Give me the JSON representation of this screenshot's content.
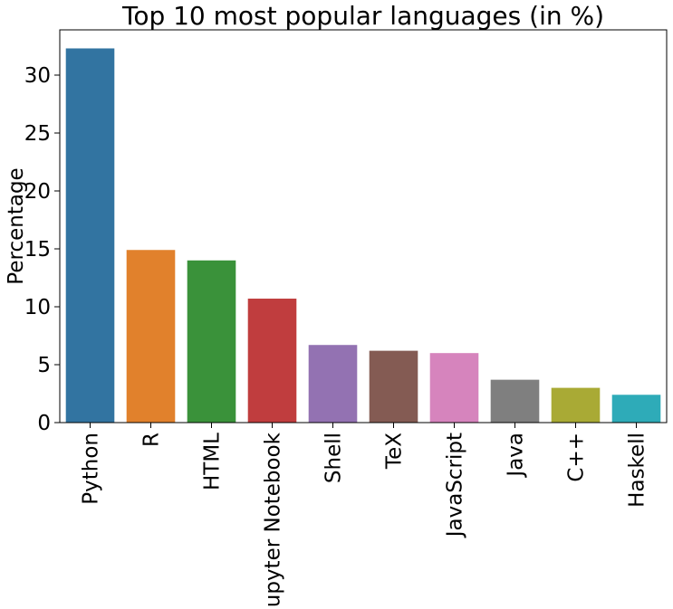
{
  "chart_data": {
    "type": "bar",
    "title": "Top 10 most popular languages (in %)",
    "xlabel": "",
    "ylabel": "Percentage",
    "categories": [
      "Python",
      "R",
      "HTML",
      "Jupyter Notebook",
      "Shell",
      "TeX",
      "JavaScript",
      "Java",
      "C++",
      "Haskell"
    ],
    "values": [
      32.3,
      14.9,
      14.0,
      10.7,
      6.7,
      6.2,
      6.0,
      3.7,
      3.0,
      2.4
    ],
    "colors": [
      "#3274a1",
      "#e1812c",
      "#3a923a",
      "#c03d3e",
      "#9372b2",
      "#845b53",
      "#d684bd",
      "#7f7f7f",
      "#a9aa35",
      "#2eabb8"
    ],
    "yticks": [
      0,
      5,
      10,
      15,
      20,
      25,
      30
    ],
    "ylim": [
      0,
      33.9
    ],
    "grid": false,
    "legend": "none"
  }
}
